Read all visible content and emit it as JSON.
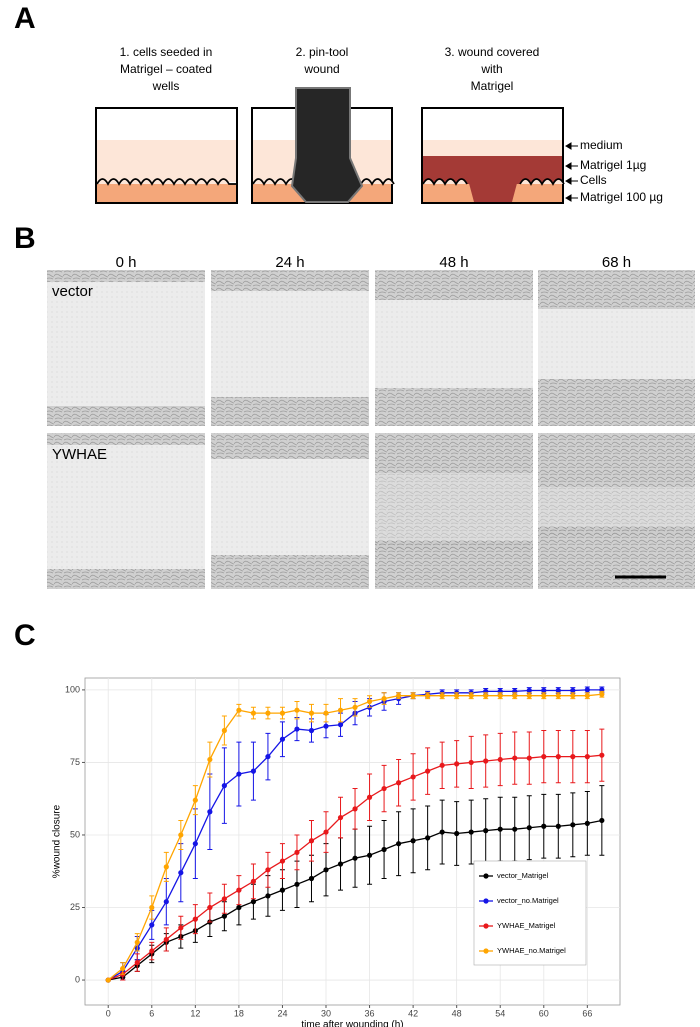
{
  "panels": {
    "a": {
      "letter": "A",
      "steps": [
        [
          "1. cells seeded in",
          "Matrigel – coated",
          "wells"
        ],
        [
          "2. pin-tool",
          "wound"
        ],
        [
          "3. wound covered",
          "with",
          "Matrigel"
        ]
      ],
      "layers": [
        "medium",
        "Matrigel 1µg",
        "Cells",
        "Matrigel 100 µg"
      ]
    },
    "b": {
      "letter": "B",
      "columns": [
        "0 h",
        "24 h",
        "48 h",
        "68 h"
      ],
      "rows": [
        "vector",
        "YWHAE"
      ]
    },
    "c": {
      "letter": "C"
    }
  },
  "chart_data": {
    "type": "line",
    "x_label": "time after wounding (h)",
    "y_label": "%wound closure",
    "x": [
      0,
      2,
      4,
      6,
      8,
      10,
      12,
      14,
      16,
      18,
      20,
      22,
      24,
      26,
      28,
      30,
      32,
      34,
      36,
      38,
      40,
      42,
      44,
      46,
      48,
      50,
      52,
      54,
      56,
      58,
      60,
      62,
      64,
      66,
      68
    ],
    "xlim": [
      -3.2,
      70.5
    ],
    "ylim": [
      -8.6,
      104.1
    ],
    "xticks": [
      0,
      6,
      12,
      18,
      24,
      30,
      36,
      42,
      48,
      54,
      60,
      66
    ],
    "yticks": [
      0,
      25,
      50,
      75,
      100
    ],
    "grid": true,
    "legend": "lower right",
    "series": [
      {
        "name": "vector_Matrigel",
        "color": "#000000",
        "values": [
          0,
          1,
          5,
          9,
          13,
          15,
          17,
          20,
          22,
          25,
          27,
          29,
          31,
          33,
          35,
          38,
          40,
          42,
          43,
          45,
          47,
          48,
          49,
          51,
          50.5,
          51,
          51.5,
          52,
          52,
          52.5,
          53,
          53,
          53.5,
          54,
          55
        ],
        "errors": [
          0,
          1,
          2,
          3,
          3,
          4,
          4,
          5,
          5,
          6,
          6,
          7,
          7,
          8,
          8,
          9,
          9,
          10,
          10,
          10,
          11,
          11,
          11,
          11,
          11,
          11,
          11,
          11,
          11,
          11,
          11,
          11,
          11,
          11,
          12
        ]
      },
      {
        "name": "vector_no.Matrigel",
        "color": "#1515e6",
        "values": [
          0,
          3,
          11,
          19,
          27,
          37,
          47,
          58,
          67,
          71,
          72,
          77,
          83,
          86.5,
          86,
          87.5,
          88,
          92,
          94,
          96,
          97,
          98,
          98.5,
          99,
          99,
          99,
          99.5,
          99.5,
          99.5,
          99.8,
          99.8,
          99.8,
          99.8,
          100,
          100
        ],
        "errors": [
          0,
          3,
          4,
          5,
          8,
          10,
          12,
          13,
          13,
          11,
          10,
          8,
          6,
          4,
          4,
          4,
          4,
          4,
          3,
          3,
          2,
          1,
          1,
          1,
          1,
          1,
          1,
          1,
          1,
          1,
          1,
          1,
          1,
          1,
          1
        ]
      },
      {
        "name": "YWHAE_Matrigel",
        "color": "#e8191c",
        "values": [
          0,
          2,
          6,
          10,
          14,
          18,
          21,
          25,
          28,
          31,
          34,
          38,
          41,
          44,
          48,
          51,
          56,
          59,
          63,
          66,
          68,
          70,
          72,
          74,
          74.5,
          75,
          75.5,
          76,
          76.5,
          76.5,
          77,
          77,
          77,
          77,
          77.5
        ],
        "errors": [
          0,
          2,
          3,
          3,
          4,
          4,
          5,
          5,
          5,
          5,
          6,
          6,
          6,
          6,
          7,
          7,
          7,
          7,
          8,
          8,
          8,
          8,
          8,
          8,
          8,
          9,
          9,
          9,
          9,
          9,
          9,
          9,
          9,
          9,
          9
        ]
      },
      {
        "name": "YWHAE_no.Matrigel",
        "color": "#ffa500",
        "values": [
          0,
          4,
          13,
          25,
          39,
          50,
          62,
          76,
          86,
          93,
          92,
          92,
          92,
          93,
          92,
          92,
          93,
          94,
          96,
          97,
          98,
          98,
          98,
          98,
          98,
          98,
          98,
          98,
          98,
          98,
          98,
          98,
          98,
          98,
          98.5
        ],
        "errors": [
          0,
          2,
          3,
          4,
          5,
          5,
          5,
          6,
          5,
          2,
          2,
          2,
          2,
          3,
          3,
          3,
          4,
          3,
          2,
          2,
          1,
          1,
          1,
          1,
          1,
          1,
          1,
          1,
          1,
          1,
          1,
          1,
          1,
          1,
          1
        ]
      }
    ]
  }
}
